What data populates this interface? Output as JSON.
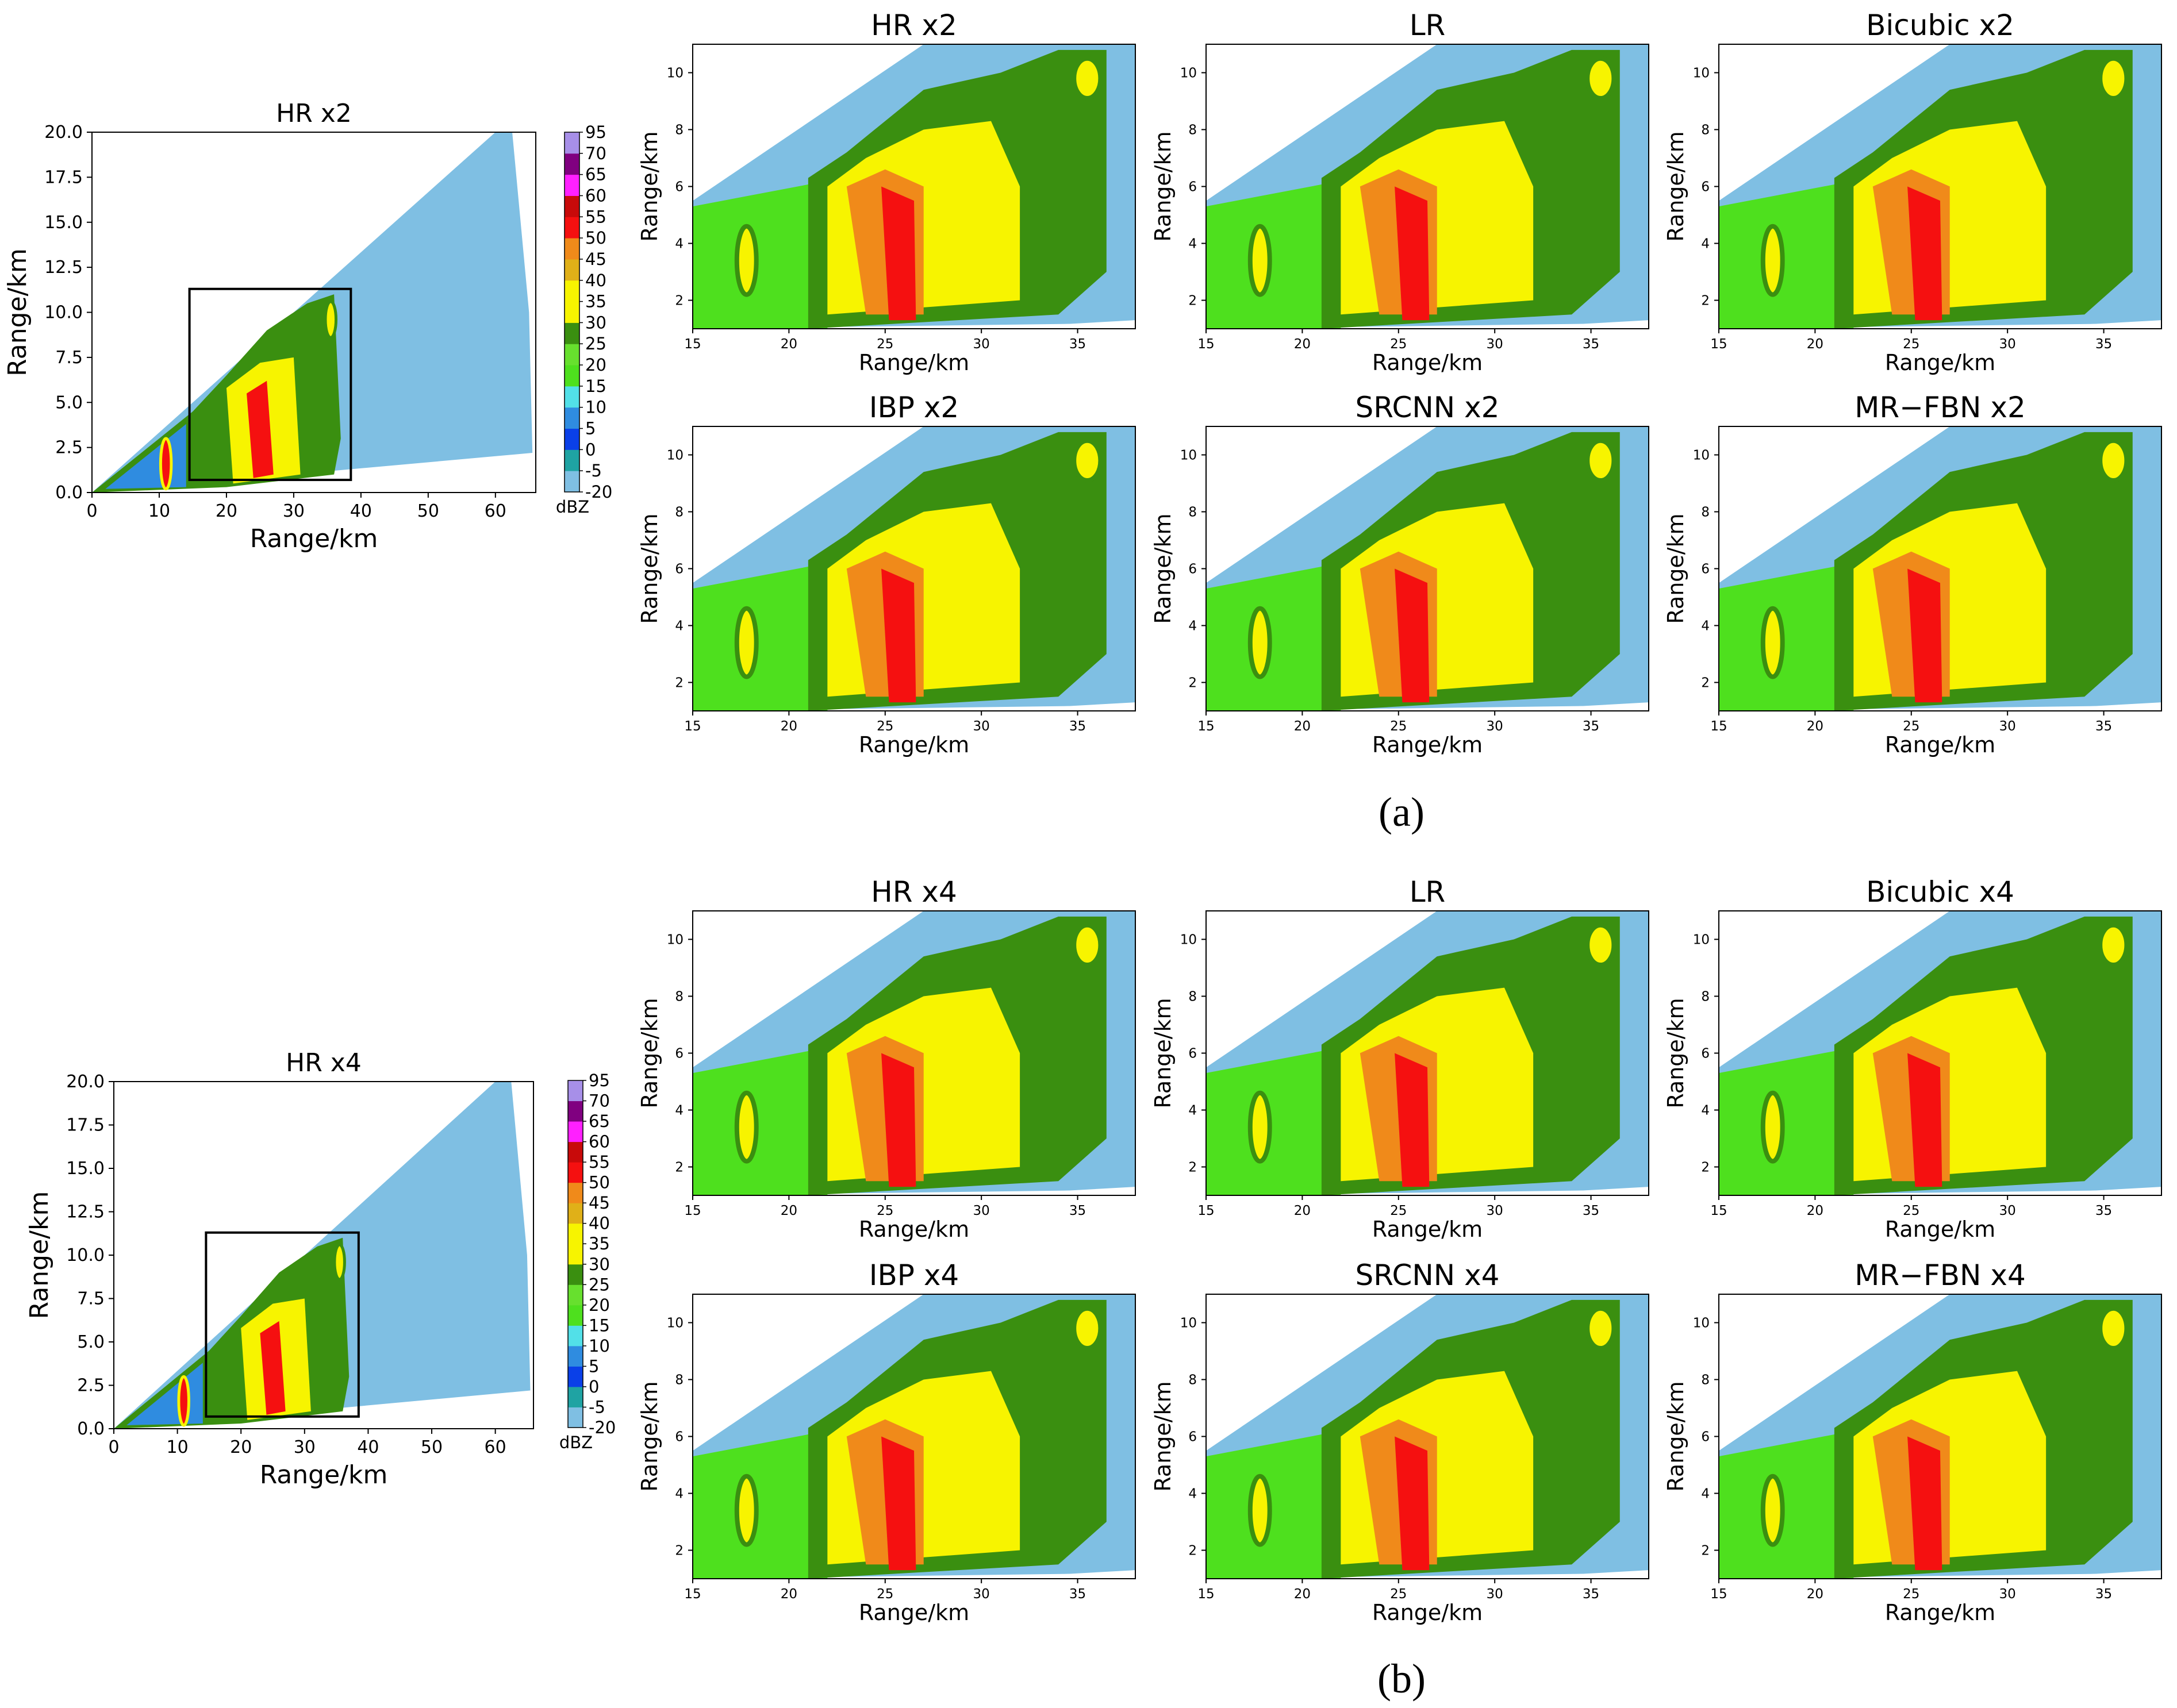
{
  "colors": {
    "background": "#7fbfe3",
    "frame": "#000000",
    "scale": [
      "#7fbfe3",
      "#1fa3a3",
      "#0a40e8",
      "#2f8ce0",
      "#52e0e8",
      "#4ee01e",
      "#67e02e",
      "#3a8f10",
      "#f7f400",
      "#f7f400",
      "#e0b018",
      "#f08a1a",
      "#f51010",
      "#c80a0a",
      "#ff20ff",
      "#800080",
      "#a78fe8"
    ]
  },
  "colorbar": {
    "unit": "dBZ",
    "ticks": [
      "95",
      "70",
      "65",
      "60",
      "55",
      "50",
      "45",
      "40",
      "35",
      "30",
      "25",
      "20",
      "15",
      "10",
      "5",
      "0",
      "-5",
      "-20"
    ]
  },
  "overview": [
    {
      "title": "HR x2",
      "xlabel": "Range/km",
      "ylabel": "Range/km",
      "xticks": [
        "0",
        "10",
        "20",
        "30",
        "40",
        "50",
        "60"
      ],
      "yticks": [
        "0.0",
        "2.5",
        "5.0",
        "7.5",
        "10.0",
        "12.5",
        "15.0",
        "17.5",
        "20.0"
      ]
    },
    {
      "title": "HR x4",
      "xlabel": "Range/km",
      "ylabel": "Range/km",
      "xticks": [
        "0",
        "10",
        "20",
        "30",
        "40",
        "50",
        "60"
      ],
      "yticks": [
        "0.0",
        "2.5",
        "5.0",
        "7.5",
        "10.0",
        "12.5",
        "15.0",
        "17.5",
        "20.0"
      ]
    }
  ],
  "panel_axes": {
    "xlabel": "Range/km",
    "ylabel": "Range/km",
    "xticks": [
      "15",
      "20",
      "25",
      "30",
      "35"
    ],
    "yticks": [
      "2",
      "4",
      "6",
      "8",
      "10"
    ]
  },
  "captions": [
    "(a)",
    "(b)"
  ],
  "chart_data": [
    {
      "type": "heatmap",
      "group": "(a)",
      "title": "HR x2 (overview)",
      "xlabel": "Range/km",
      "ylabel": "Range/km",
      "xlim": [
        0,
        66
      ],
      "ylim": [
        0,
        20
      ],
      "zoom_box": {
        "x": [
          14.5,
          38.5
        ],
        "y": [
          0.7,
          11.3
        ]
      },
      "colorbar": {
        "label": "dBZ",
        "levels": [
          -20,
          -5,
          0,
          5,
          10,
          15,
          20,
          25,
          30,
          35,
          40,
          45,
          50,
          55,
          60,
          65,
          70,
          95
        ]
      },
      "panels": [
        {
          "title": "HR x2"
        },
        {
          "title": "LR"
        },
        {
          "title": "Bicubic x2"
        },
        {
          "title": "IBP x2"
        },
        {
          "title": "SRCNN x2"
        },
        {
          "title": "MR−FBN x2"
        }
      ],
      "panel_xlim": [
        15,
        38
      ],
      "panel_ylim": [
        1,
        11
      ]
    },
    {
      "type": "heatmap",
      "group": "(b)",
      "title": "HR x4 (overview)",
      "xlabel": "Range/km",
      "ylabel": "Range/km",
      "xlim": [
        0,
        66
      ],
      "ylim": [
        0,
        20
      ],
      "zoom_box": {
        "x": [
          14.5,
          38.5
        ],
        "y": [
          0.7,
          11.3
        ]
      },
      "colorbar": {
        "label": "dBZ",
        "levels": [
          -20,
          -5,
          0,
          5,
          10,
          15,
          20,
          25,
          30,
          35,
          40,
          45,
          50,
          55,
          60,
          65,
          70,
          95
        ]
      },
      "panels": [
        {
          "title": "HR x4"
        },
        {
          "title": "LR"
        },
        {
          "title": "Bicubic x4"
        },
        {
          "title": "IBP x4"
        },
        {
          "title": "SRCNN x4"
        },
        {
          "title": "MR−FBN x4"
        }
      ],
      "panel_xlim": [
        15,
        38
      ],
      "panel_ylim": [
        1,
        11
      ]
    }
  ]
}
